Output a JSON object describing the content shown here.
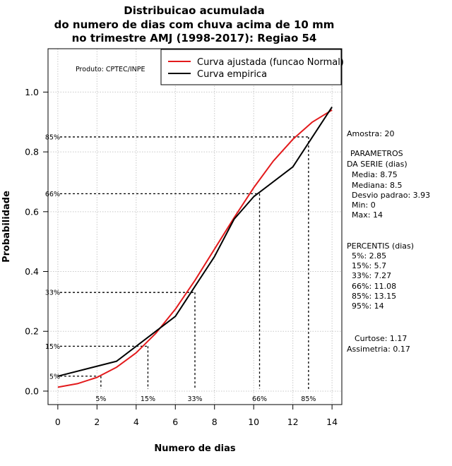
{
  "chart_data": {
    "type": "line",
    "title_lines": [
      "Distribuicao acumulada",
      "do numero de dias com chuva acima de 10 mm",
      "no trimestre AMJ (1998-2017): Regiao 54"
    ],
    "xlabel": "Numero de dias",
    "ylabel": "Probabilidade",
    "xlim": [
      -0.5,
      14.5
    ],
    "ylim": [
      -0.045,
      1.145
    ],
    "x_ticks": [
      0,
      2,
      4,
      6,
      8,
      10,
      12,
      14
    ],
    "y_ticks": [
      0.0,
      0.2,
      0.4,
      0.6,
      0.8,
      1.0
    ],
    "y_tick_labels": [
      "0.0",
      "0.2",
      "0.4",
      "0.6",
      "0.8",
      "1.0"
    ],
    "grid": true,
    "credit": "Produto: CPTEC/INPE",
    "series": [
      {
        "name": "Curva ajustada (funcao Normal)",
        "color": "#e31a1c",
        "x": [
          0,
          1,
          2,
          3,
          4,
          5,
          6,
          7,
          8,
          9,
          10,
          11,
          12,
          13,
          14
        ],
        "y": [
          0.013,
          0.025,
          0.046,
          0.08,
          0.128,
          0.193,
          0.274,
          0.37,
          0.475,
          0.58,
          0.68,
          0.769,
          0.842,
          0.9,
          0.94
        ]
      },
      {
        "name": "Curva empirica",
        "color": "#000000",
        "x": [
          0,
          3,
          6,
          7,
          8,
          9,
          10,
          12,
          14
        ],
        "y": [
          0.05,
          0.1,
          0.25,
          0.35,
          0.45,
          0.575,
          0.65,
          0.75,
          0.95
        ]
      }
    ],
    "percentile_markers": [
      {
        "label": "5%",
        "x": 2.2,
        "y": 0.05
      },
      {
        "label": "15%",
        "x": 4.6,
        "y": 0.15
      },
      {
        "label": "33%",
        "x": 7.0,
        "y": 0.33
      },
      {
        "label": "66%",
        "x": 10.3,
        "y": 0.66
      },
      {
        "label": "85%",
        "x": 12.8,
        "y": 0.85
      }
    ],
    "side_panel": {
      "amostra": "Amostra: 20",
      "param_title_1": "PARAMETROS",
      "param_title_2": "DA SERIE (dias)",
      "params": [
        "Media: 8.75",
        "Mediana: 8.5",
        "Desvio padrao: 3.93",
        "Min: 0",
        "Max: 14"
      ],
      "percentis_title": "PERCENTIS (dias)",
      "percentis": [
        "5%: 2.85",
        "15%: 5.7",
        "33%: 7.27",
        "66%: 11.08",
        "85%: 13.15",
        "95%: 14"
      ],
      "curtose": "Curtose: 1.17",
      "assimetria": "Assimetria: 0.17"
    }
  }
}
